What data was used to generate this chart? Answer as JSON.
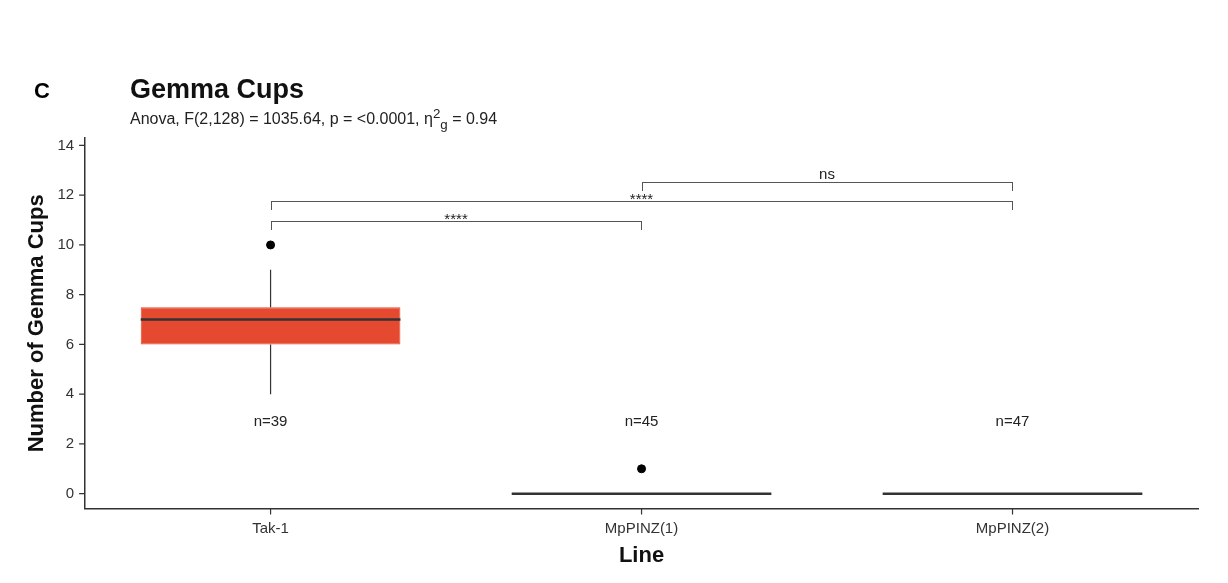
{
  "chart_data": {
    "type": "box",
    "title": "Gemma Cups",
    "subtitle": "Anova, F(2,128) = 1035.64, p = <0.0001, η$^{2}$$_{g}$ = 0.94",
    "xlabel": "Line",
    "ylabel": "Number of Gemma Cups",
    "categories": [
      "Tak-1",
      "MpPINZ(1)",
      "MpPINZ(2)"
    ],
    "colors": [
      "#e5492f",
      "#333333",
      "#333333"
    ],
    "boxes": [
      {
        "low": 4,
        "q1": 6,
        "median": 7,
        "q3": 7.5,
        "high": 9,
        "outliers": [
          10
        ]
      },
      {
        "low": 0,
        "q1": 0,
        "median": 0,
        "q3": 0,
        "high": 0,
        "outliers": [
          1
        ]
      },
      {
        "low": 0,
        "q1": 0,
        "median": 0,
        "q3": 0,
        "high": 0
      }
    ],
    "ylim": [
      -0.6,
      14.3
    ],
    "yticks": [
      0,
      2,
      4,
      6,
      8,
      10,
      12,
      14
    ],
    "grid": false,
    "legend": false,
    "annotations": [
      "C",
      "****",
      "****",
      "ns",
      "n=39",
      "n=45",
      "n=47"
    ]
  }
}
